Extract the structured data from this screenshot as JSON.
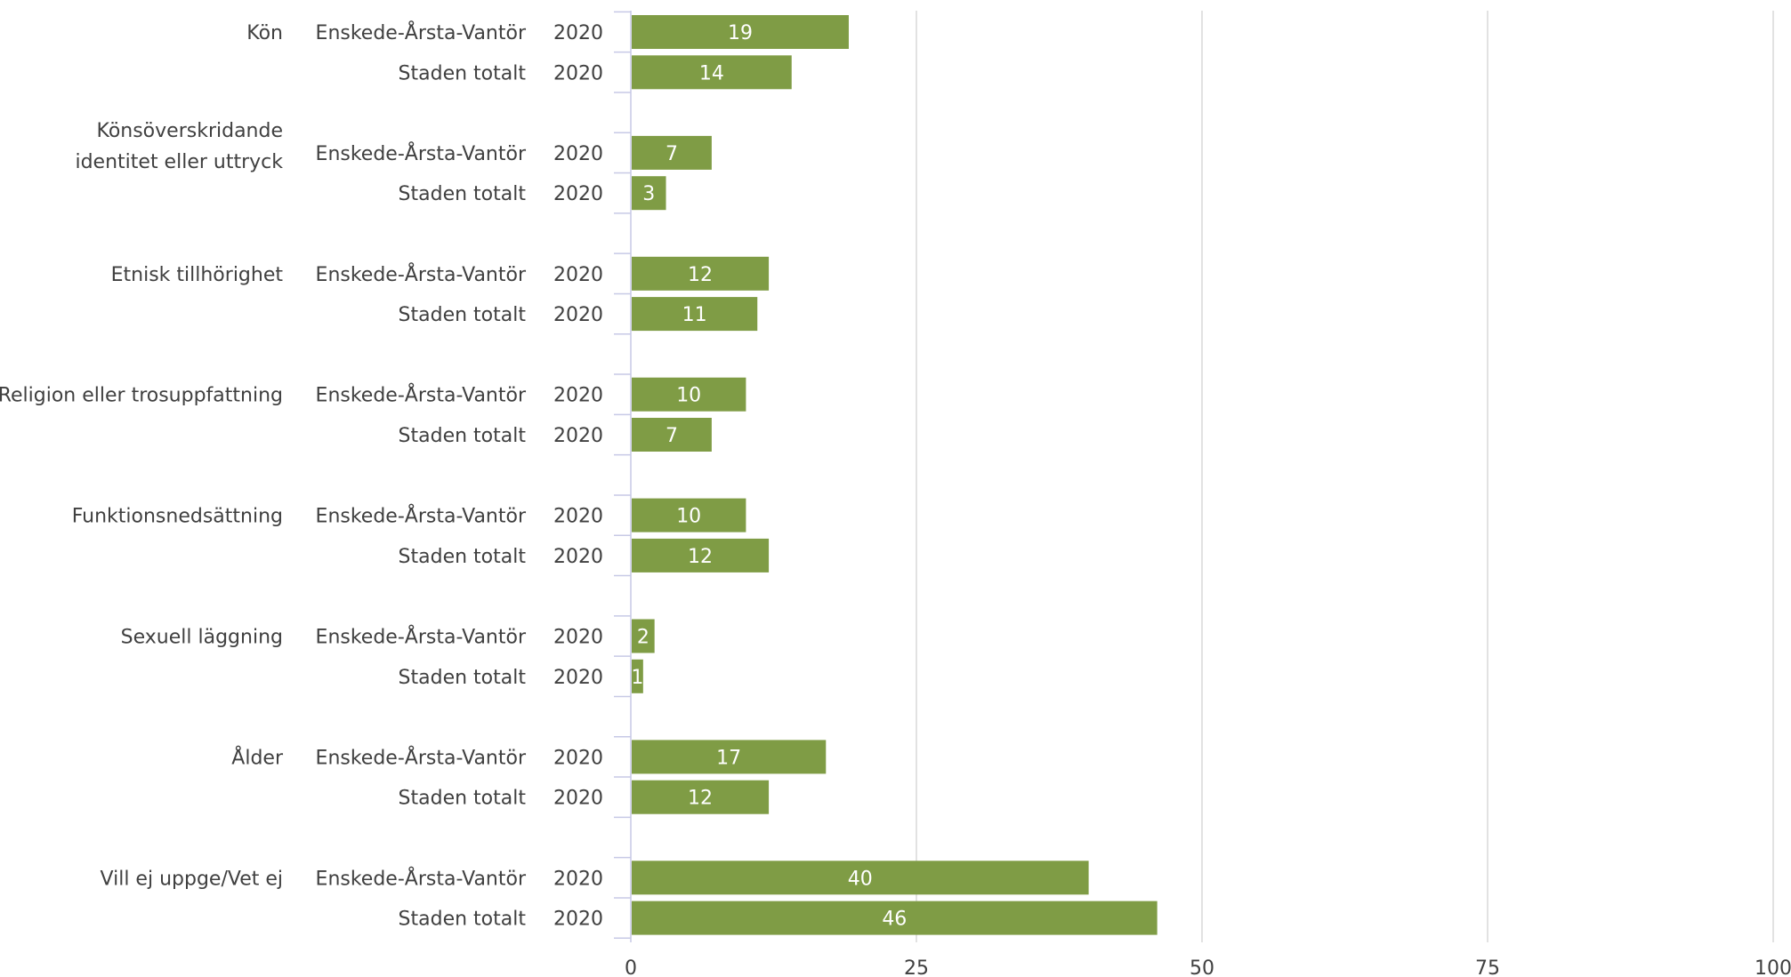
{
  "chart_data": {
    "type": "bar",
    "orientation": "horizontal",
    "title": "",
    "xlabel": "",
    "ylabel": "",
    "xlim": [
      0,
      100
    ],
    "x_ticks": [
      0,
      25,
      50,
      75,
      100
    ],
    "grid": true,
    "bar_color": "#7f9c45",
    "categories": [
      {
        "label": "Kön",
        "rows": [
          {
            "group": "Enskede-Årsta-Vantör",
            "year": "2020",
            "value": 19
          },
          {
            "group": "Staden totalt",
            "year": "2020",
            "value": 14
          }
        ]
      },
      {
        "label": "Könsöverskridande identitet eller uttryck",
        "label_lines": [
          "Könsöverskridande",
          "identitet eller uttryck"
        ],
        "rows": [
          {
            "group": "Enskede-Årsta-Vantör",
            "year": "2020",
            "value": 7
          },
          {
            "group": "Staden totalt",
            "year": "2020",
            "value": 3
          }
        ]
      },
      {
        "label": "Etnisk tillhörighet",
        "rows": [
          {
            "group": "Enskede-Årsta-Vantör",
            "year": "2020",
            "value": 12
          },
          {
            "group": "Staden totalt",
            "year": "2020",
            "value": 11
          }
        ]
      },
      {
        "label": "Religion eller trosuppfattning",
        "rows": [
          {
            "group": "Enskede-Årsta-Vantör",
            "year": "2020",
            "value": 10
          },
          {
            "group": "Staden totalt",
            "year": "2020",
            "value": 7
          }
        ]
      },
      {
        "label": "Funktionsnedsättning",
        "rows": [
          {
            "group": "Enskede-Årsta-Vantör",
            "year": "2020",
            "value": 10
          },
          {
            "group": "Staden totalt",
            "year": "2020",
            "value": 12
          }
        ]
      },
      {
        "label": "Sexuell läggning",
        "rows": [
          {
            "group": "Enskede-Årsta-Vantör",
            "year": "2020",
            "value": 2
          },
          {
            "group": "Staden totalt",
            "year": "2020",
            "value": 1
          }
        ]
      },
      {
        "label": "Ålder",
        "rows": [
          {
            "group": "Enskede-Årsta-Vantör",
            "year": "2020",
            "value": 17
          },
          {
            "group": "Staden totalt",
            "year": "2020",
            "value": 12
          }
        ]
      },
      {
        "label": "Vill ej uppge/Vet ej",
        "rows": [
          {
            "group": "Enskede-Årsta-Vantör",
            "year": "2020",
            "value": 40
          },
          {
            "group": "Staden totalt",
            "year": "2020",
            "value": 46
          }
        ]
      }
    ]
  }
}
